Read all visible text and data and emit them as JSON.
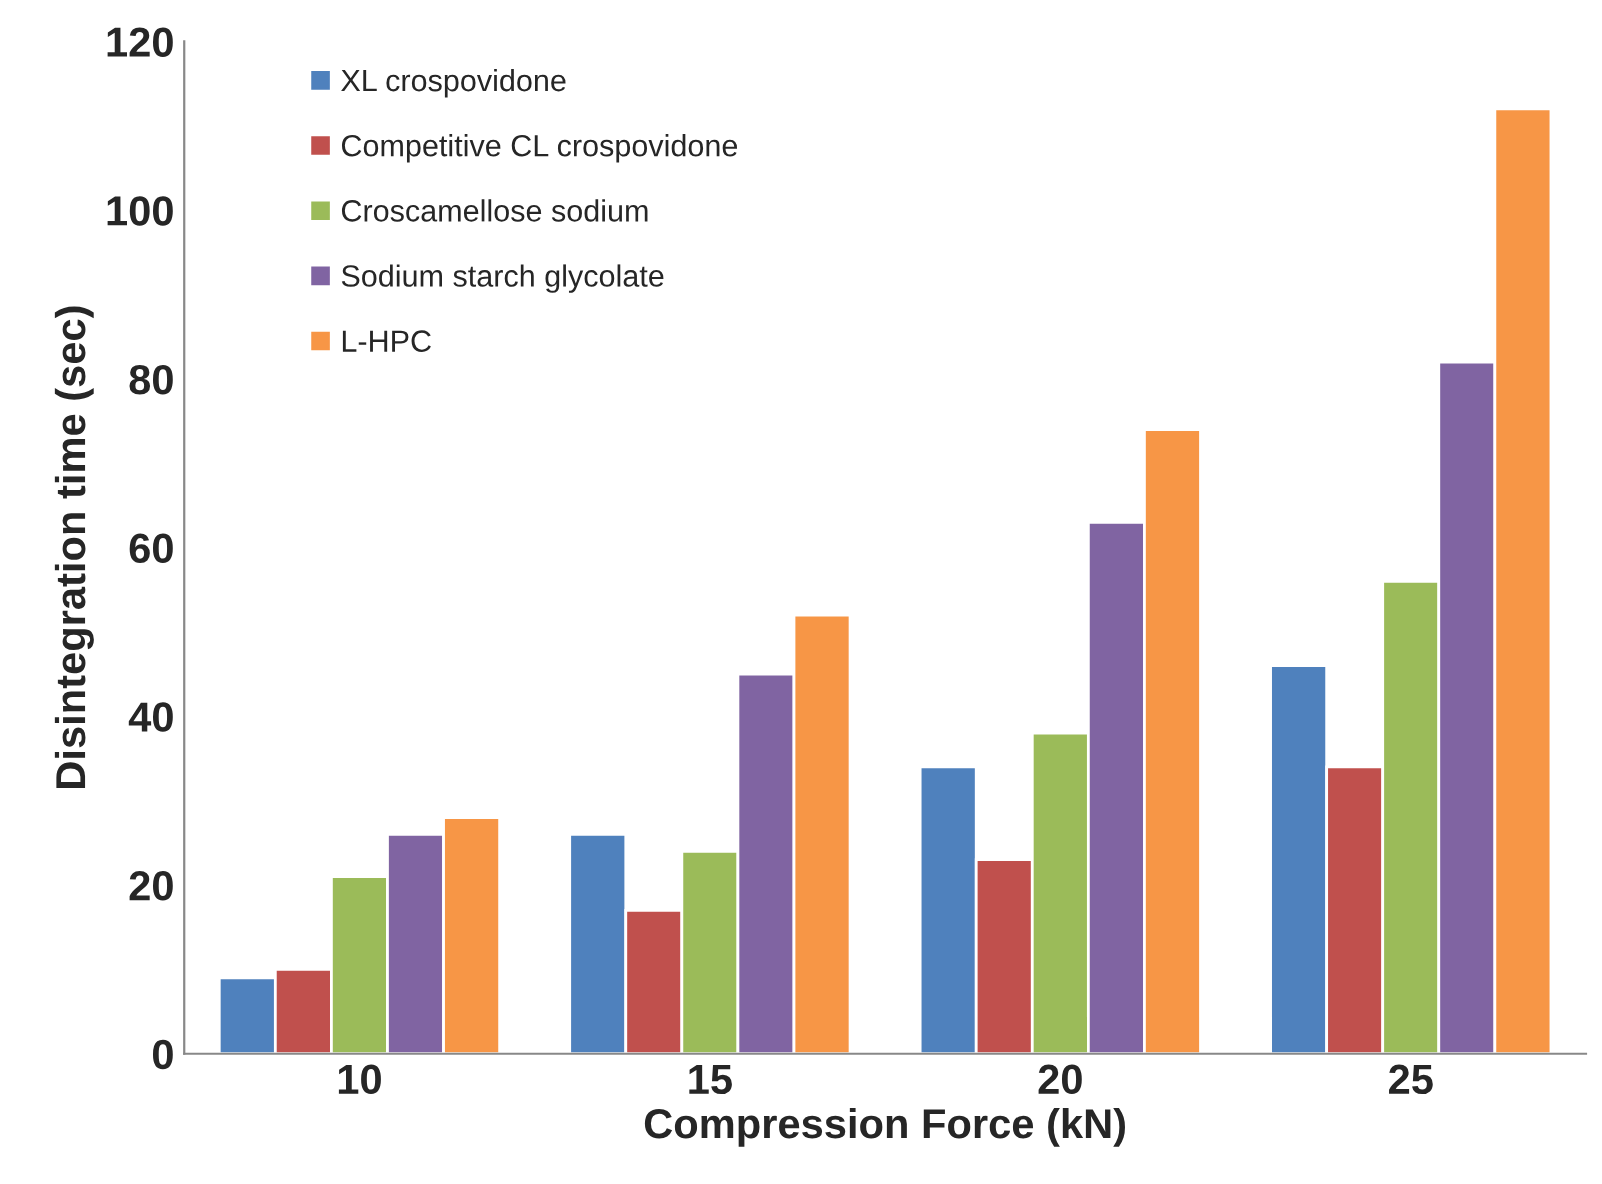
{
  "chart_data": {
    "type": "bar",
    "xlabel": "Compression Force (kN)",
    "ylabel": "Disintegration time (sec)",
    "categories": [
      "10",
      "15",
      "20",
      "25"
    ],
    "series": [
      {
        "name": "XL crospovidone",
        "color": "#4f81bd",
        "values": [
          9,
          26,
          34,
          46
        ]
      },
      {
        "name": "Competitive CL crospovidone",
        "color": "#c0504d",
        "values": [
          10,
          17,
          23,
          34
        ]
      },
      {
        "name": "Croscamellose sodium",
        "color": "#9bbb59",
        "values": [
          21,
          24,
          38,
          56
        ]
      },
      {
        "name": "Sodium starch glycolate",
        "color": "#8064a2",
        "values": [
          26,
          45,
          63,
          82
        ]
      },
      {
        "name": "L-HPC",
        "color": "#f79646",
        "values": [
          28,
          52,
          74,
          112
        ]
      }
    ],
    "ylim": [
      0,
      120
    ],
    "yticks": [
      0,
      20,
      40,
      60,
      80,
      100,
      120
    ],
    "grid": false,
    "legend": "top left"
  }
}
